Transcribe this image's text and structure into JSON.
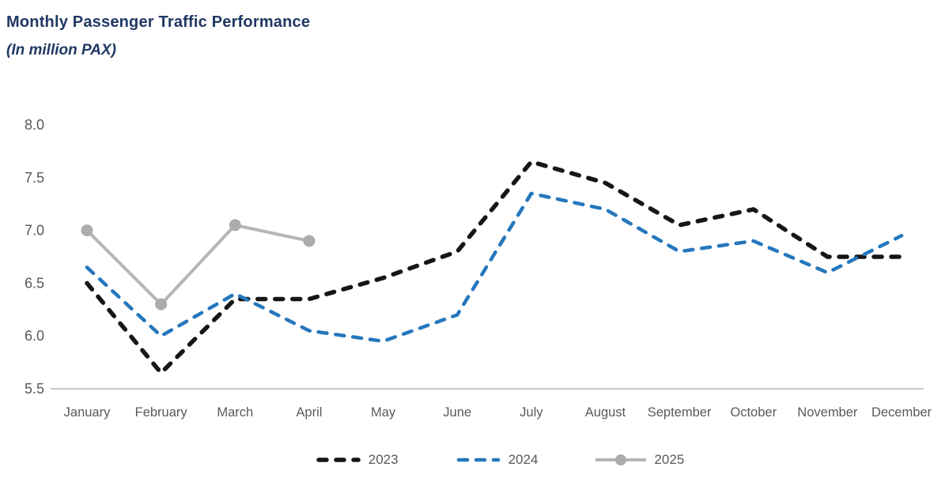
{
  "header": {
    "title": "Monthly Passenger Traffic Performance",
    "subtitle": "(In million PAX)"
  },
  "colors": {
    "title_text": "#203864",
    "axis_text": "#595959",
    "axis_line": "#C9C9C9",
    "series_2023": "#161616",
    "series_2024": "#2577BD",
    "series_2025": "#B5B5B5",
    "series_2025_marker": "#ACACAC"
  },
  "chart_data": {
    "type": "line",
    "title": "Monthly Passenger Traffic Performance",
    "subtitle": "(In million PAX)",
    "ylabel": "",
    "xlabel": "",
    "ylim": [
      5.5,
      8.0
    ],
    "yticks": [
      "8.0",
      "7.5",
      "7.0",
      "6.5",
      "6.0",
      "5.5"
    ],
    "grid": false,
    "legend_position": "bottom",
    "categories": [
      "January",
      "February",
      "March",
      "April",
      "May",
      "June",
      "July",
      "August",
      "September",
      "October",
      "November",
      "December"
    ],
    "series": [
      {
        "name": "2023",
        "style": "dashed",
        "color": "#161616",
        "values": [
          6.5,
          5.65,
          6.35,
          6.35,
          6.55,
          6.8,
          7.65,
          7.45,
          7.05,
          7.2,
          6.75,
          6.75
        ]
      },
      {
        "name": "2024",
        "style": "dashed",
        "color": "#2577BD",
        "values": [
          6.65,
          6.0,
          6.4,
          6.05,
          5.95,
          6.2,
          7.35,
          7.2,
          6.8,
          6.9,
          6.6,
          6.95
        ]
      },
      {
        "name": "2025",
        "style": "solid",
        "marker": true,
        "color": "#B5B5B5",
        "marker_color": "#ACACAC",
        "values": [
          7.0,
          6.3,
          7.05,
          6.9
        ]
      }
    ]
  },
  "legend": {
    "items": [
      {
        "label": "2023"
      },
      {
        "label": "2024"
      },
      {
        "label": "2025"
      }
    ]
  }
}
